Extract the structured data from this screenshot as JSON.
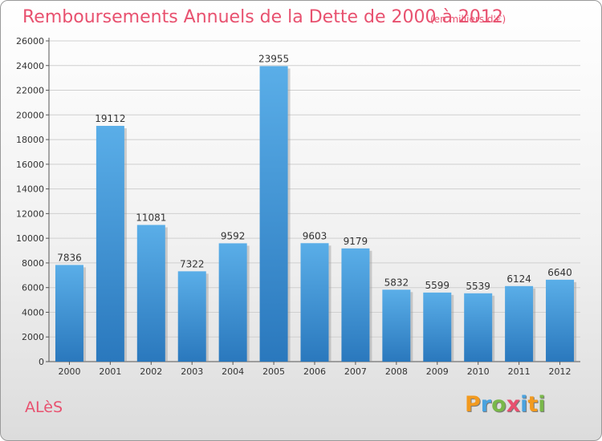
{
  "chart_data": {
    "type": "bar",
    "title": "Remboursements Annuels de la Dette de 2000 à 2012",
    "unit_note": "(en milliers d'€)",
    "categories": [
      "2000",
      "2001",
      "2002",
      "2003",
      "2004",
      "2005",
      "2006",
      "2007",
      "2008",
      "2009",
      "2010",
      "2011",
      "2012"
    ],
    "values": [
      7836,
      19112,
      11081,
      7322,
      9592,
      23955,
      9603,
      9179,
      5832,
      5599,
      5539,
      6124,
      6640
    ],
    "ylim": [
      0,
      26000
    ],
    "yticks": [
      0,
      2000,
      4000,
      6000,
      8000,
      10000,
      12000,
      14000,
      16000,
      18000,
      20000,
      22000,
      24000,
      26000
    ],
    "grid": true,
    "bar_color": "#3d8fd4",
    "xlabel": "",
    "ylabel": ""
  },
  "footer": {
    "city": "ALèS",
    "logo_letters": [
      "P",
      "r",
      "o",
      "x",
      "i",
      "t",
      "i"
    ],
    "logo_colors": [
      "#f29a1f",
      "#4aa3df",
      "#79b84a",
      "#e8516f",
      "#4aa3df",
      "#f29a1f",
      "#79b84a"
    ]
  }
}
